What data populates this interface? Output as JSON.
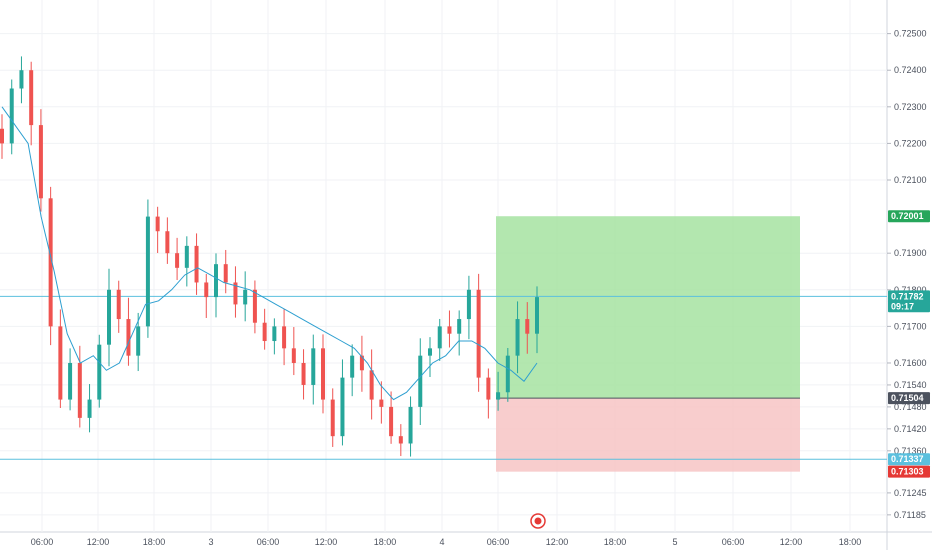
{
  "chart_data": {
    "type": "candlestick",
    "symbol_currency": "",
    "x_ticks": [
      "06:00",
      "12:00",
      "18:00",
      "3",
      "06:00",
      "12:00",
      "18:00",
      "4",
      "06:00",
      "12:00",
      "18:00",
      "5",
      "06:00",
      "12:00",
      "18:00"
    ],
    "y_ticks": [
      "0.72500",
      "0.72400",
      "0.72300",
      "0.72200",
      "0.72100",
      "0.71900",
      "0.71800",
      "0.71700",
      "0.71600",
      "0.71540",
      "0.71480",
      "0.71420",
      "0.71360",
      "0.71245",
      "0.71185"
    ],
    "ylim": [
      0.7116,
      0.7257
    ],
    "series": [
      {
        "kind": "close-path",
        "values": [
          0.722,
          0.7235,
          0.724,
          0.7225,
          0.7205,
          0.717,
          0.715,
          0.716,
          0.7145,
          0.715,
          0.7165,
          0.718,
          0.7172,
          0.7162,
          0.717,
          0.72,
          0.7196,
          0.719,
          0.7186,
          0.7192,
          0.7182,
          0.7178,
          0.7187,
          0.7182,
          0.7176,
          0.718,
          0.7171,
          0.7166,
          0.717,
          0.7164,
          0.716,
          0.7154,
          0.7164,
          0.715,
          0.714,
          0.7156,
          0.7162,
          0.7158,
          0.715,
          0.7148,
          0.714,
          0.7138,
          0.7148,
          0.7162,
          0.7164,
          0.717,
          0.7168,
          0.7172,
          0.718,
          0.7156,
          0.715,
          0.7152,
          0.7162,
          0.7172,
          0.7168,
          0.7178
        ]
      },
      {
        "kind": "moving-average",
        "color": "#2d9fd0",
        "values": [
          0.723,
          0.7225,
          0.722,
          0.72,
          0.7185,
          0.7168,
          0.716,
          0.7162,
          0.7158,
          0.716,
          0.7168,
          0.7176,
          0.7177,
          0.718,
          0.7184,
          0.7186,
          0.7184,
          0.7182,
          0.7181,
          0.718,
          0.7178,
          0.7176,
          0.7174,
          0.7172,
          0.717,
          0.7168,
          0.7166,
          0.7164,
          0.716,
          0.7154,
          0.715,
          0.7152,
          0.7156,
          0.716,
          0.7162,
          0.7166,
          0.7166,
          0.7164,
          0.716,
          0.7158,
          0.7155,
          0.716
        ]
      }
    ],
    "horizontal_lines": [
      {
        "value": 0.71782,
        "color": "#5bc0de"
      },
      {
        "value": 0.71337,
        "color": "#5bc0de"
      }
    ],
    "position": {
      "entry": 0.71504,
      "target": 0.72001,
      "stop": 0.71303,
      "profit_color": "#a6e3a1",
      "loss_color": "#f7c4c4"
    },
    "price_tags": [
      {
        "label": "0.72001",
        "value": 0.72001,
        "color": "#26a65b"
      },
      {
        "label": "0.71782",
        "value": 0.71782,
        "color": "#26a69a"
      },
      {
        "label": "09:17",
        "value": 0.71755,
        "color": "#26a69a"
      },
      {
        "label": "0.71504",
        "value": 0.71504,
        "color": "#4c525e"
      },
      {
        "label": "0.71337",
        "value": 0.71337,
        "color": "#5bc0de"
      },
      {
        "label": "0.71303",
        "value": 0.71303,
        "color": "#e53935"
      }
    ],
    "grid": true,
    "up_color": "#26a69a",
    "down_color": "#ef5350"
  }
}
